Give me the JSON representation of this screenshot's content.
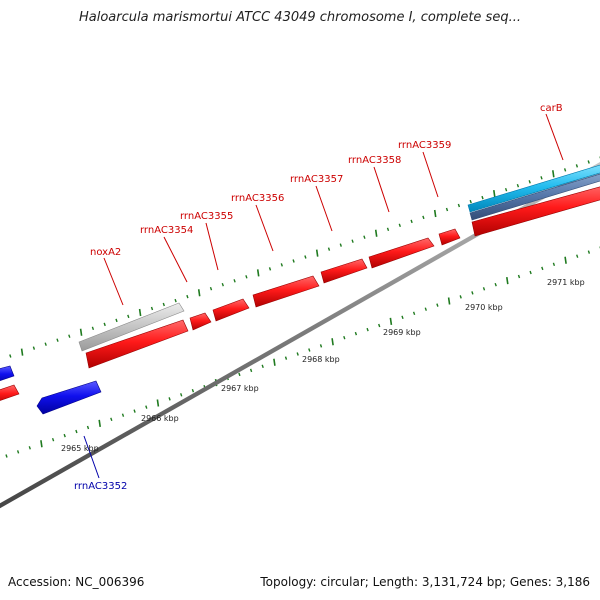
{
  "header": {
    "title": "Haloarcula marismortui ATCC 43049 chromosome I, complete seq..."
  },
  "footer": {
    "accession": "Accession: NC_006396",
    "topology": "Topology: circular; Length: 3,131,724 bp; Genes: 3,186"
  },
  "scale": {
    "unit": "kbp",
    "labels": [
      {
        "text": "2965 kbp",
        "kbp": 2965
      },
      {
        "text": "2966 kbp",
        "kbp": 2966
      },
      {
        "text": "2967 kbp",
        "kbp": 2967
      },
      {
        "text": "2968 kbp",
        "kbp": 2968
      },
      {
        "text": "2969 kbp",
        "kbp": 2969
      },
      {
        "text": "2970 kbp",
        "kbp": 2970
      },
      {
        "text": "2971 kbp",
        "kbp": 2971
      }
    ]
  },
  "genes": [
    {
      "label": "carB",
      "color": "#cc0000"
    },
    {
      "label": "rrnAC3359",
      "color": "#cc0000"
    },
    {
      "label": "rrnAC3358",
      "color": "#cc0000"
    },
    {
      "label": "rrnAC3357",
      "color": "#cc0000"
    },
    {
      "label": "rrnAC3356",
      "color": "#cc0000"
    },
    {
      "label": "rrnAC3355",
      "color": "#cc0000"
    },
    {
      "label": "rrnAC3354",
      "color": "#cc0000"
    },
    {
      "label": "noxA2",
      "color": "#cc0000"
    },
    {
      "label": "rrnAC3352",
      "color": "#0000aa"
    }
  ],
  "colors": {
    "forward_gene": "#ff0000",
    "reverse_gene": "#0000ee",
    "rna_or_other": "#c8c8c8",
    "cds_cyan": "#22bbee",
    "cds_steel": "#5577aa",
    "backbone": "#888888",
    "tick": "#1f7a1f"
  }
}
